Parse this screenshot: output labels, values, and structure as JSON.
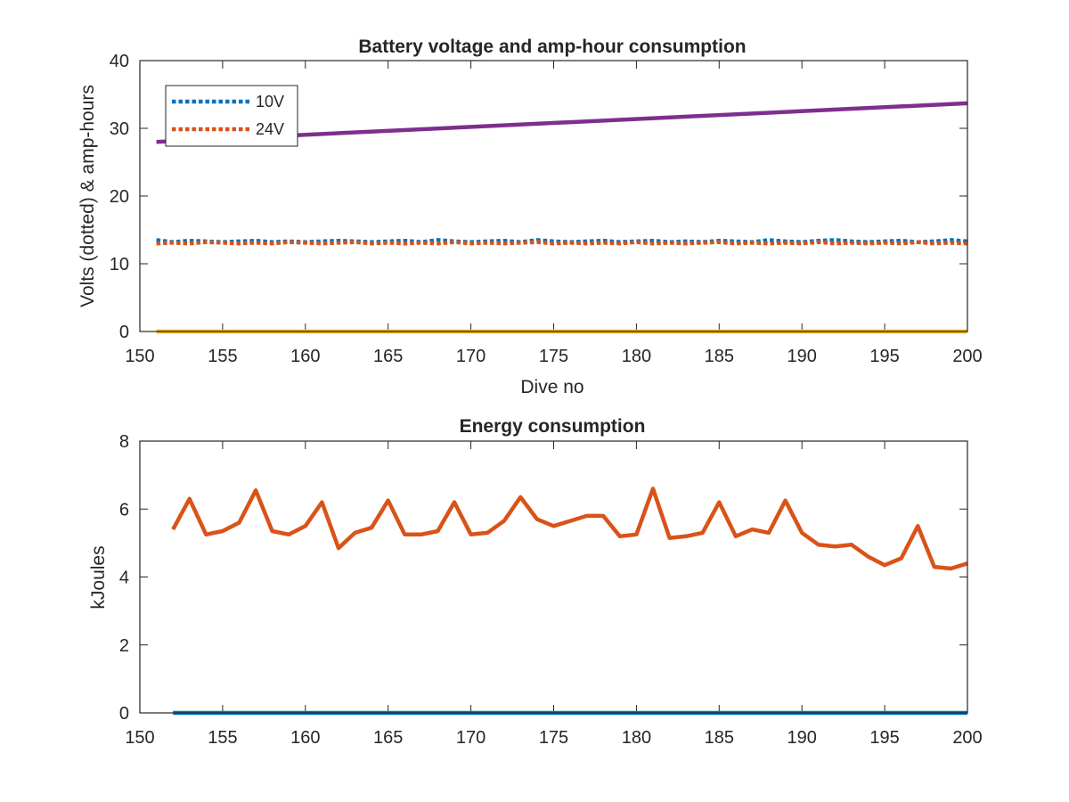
{
  "chart_data": [
    {
      "type": "line",
      "title": "Battery voltage and amp-hour consumption",
      "xlabel": "Dive no",
      "ylabel": "Volts (dotted) & amp-hours",
      "xlim": [
        150,
        200
      ],
      "ylim": [
        0,
        40
      ],
      "xticks": [
        150,
        155,
        160,
        165,
        170,
        175,
        180,
        185,
        190,
        195,
        200
      ],
      "yticks": [
        0,
        10,
        20,
        30,
        40
      ],
      "grid": false,
      "legend": {
        "placement": "top-left",
        "entries": [
          "10V",
          "24V"
        ]
      },
      "series": [
        {
          "name": "10V",
          "style": "dotted",
          "color": "#0072BD",
          "x": [
            151,
            152,
            153,
            154,
            155,
            156,
            157,
            158,
            159,
            160,
            161,
            162,
            163,
            164,
            165,
            166,
            167,
            168,
            169,
            170,
            171,
            172,
            173,
            174,
            175,
            176,
            177,
            178,
            179,
            180,
            181,
            182,
            183,
            184,
            185,
            186,
            187,
            188,
            189,
            190,
            191,
            192,
            193,
            194,
            195,
            196,
            197,
            198,
            199,
            200
          ],
          "values": [
            13.5,
            13.2,
            13.4,
            13.3,
            13.2,
            13.3,
            13.4,
            13.2,
            13.3,
            13.2,
            13.3,
            13.4,
            13.3,
            13.2,
            13.3,
            13.4,
            13.2,
            13.5,
            13.3,
            13.2,
            13.3,
            13.4,
            13.2,
            13.5,
            13.3,
            13.2,
            13.3,
            13.4,
            13.2,
            13.3,
            13.4,
            13.2,
            13.3,
            13.2,
            13.4,
            13.3,
            13.2,
            13.5,
            13.3,
            13.2,
            13.4,
            13.5,
            13.3,
            13.2,
            13.3,
            13.4,
            13.2,
            13.3,
            13.5,
            13.3
          ]
        },
        {
          "name": "24V",
          "style": "dotted",
          "color": "#D95319",
          "x": [
            151,
            152,
            153,
            154,
            155,
            156,
            157,
            158,
            159,
            160,
            161,
            162,
            163,
            164,
            165,
            166,
            167,
            168,
            169,
            170,
            171,
            172,
            173,
            174,
            175,
            176,
            177,
            178,
            179,
            180,
            181,
            182,
            183,
            184,
            185,
            186,
            187,
            188,
            189,
            190,
            191,
            192,
            193,
            194,
            195,
            196,
            197,
            198,
            199,
            200
          ],
          "values": [
            13.0,
            13.1,
            13.0,
            13.2,
            13.1,
            13.0,
            13.1,
            13.0,
            13.2,
            13.1,
            13.0,
            13.1,
            13.2,
            13.0,
            13.1,
            13.0,
            13.1,
            13.0,
            13.2,
            13.0,
            13.1,
            13.0,
            13.1,
            13.2,
            13.0,
            13.1,
            13.0,
            13.1,
            13.0,
            13.2,
            13.0,
            13.1,
            13.0,
            13.1,
            13.2,
            13.0,
            13.1,
            13.0,
            13.1,
            13.0,
            13.2,
            13.0,
            13.1,
            13.0,
            13.1,
            13.0,
            13.2,
            13.0,
            13.1,
            13.0
          ]
        },
        {
          "style": "solid",
          "color": "#7E2F8E",
          "x": [
            151,
            200
          ],
          "values": [
            28.0,
            33.7
          ]
        },
        {
          "style": "solid",
          "color": "#EDB120",
          "x": [
            151,
            200
          ],
          "values": [
            0,
            0
          ]
        }
      ]
    },
    {
      "type": "line",
      "title": "Energy consumption",
      "xlabel": "",
      "ylabel": "kJoules",
      "xlim": [
        150,
        200
      ],
      "ylim": [
        0,
        8
      ],
      "xticks": [
        150,
        155,
        160,
        165,
        170,
        175,
        180,
        185,
        190,
        195,
        200
      ],
      "yticks": [
        0,
        2,
        4,
        6,
        8
      ],
      "grid": false,
      "series": [
        {
          "style": "solid",
          "color": "#0072BD",
          "x": [
            152,
            200
          ],
          "values": [
            0,
            0
          ]
        },
        {
          "style": "solid",
          "color": "#D95319",
          "x": [
            152,
            153,
            154,
            155,
            156,
            157,
            158,
            159,
            160,
            161,
            162,
            163,
            164,
            165,
            166,
            167,
            168,
            169,
            170,
            171,
            172,
            173,
            174,
            175,
            176,
            177,
            178,
            179,
            180,
            181,
            182,
            183,
            184,
            185,
            186,
            187,
            188,
            189,
            190,
            191,
            192,
            193,
            194,
            195,
            196,
            197,
            198,
            199,
            200
          ],
          "values": [
            5.4,
            6.3,
            5.25,
            5.35,
            5.6,
            6.55,
            5.35,
            5.25,
            5.5,
            6.2,
            4.85,
            5.3,
            5.45,
            6.25,
            5.25,
            5.25,
            5.35,
            6.2,
            5.25,
            5.3,
            5.65,
            6.35,
            5.7,
            5.5,
            5.65,
            5.8,
            5.8,
            5.2,
            5.25,
            6.6,
            5.15,
            5.2,
            5.3,
            6.2,
            5.2,
            5.4,
            5.3,
            6.25,
            5.3,
            4.95,
            4.9,
            4.95,
            4.6,
            4.35,
            4.55,
            5.5,
            4.3,
            4.25,
            4.4
          ]
        }
      ]
    }
  ]
}
